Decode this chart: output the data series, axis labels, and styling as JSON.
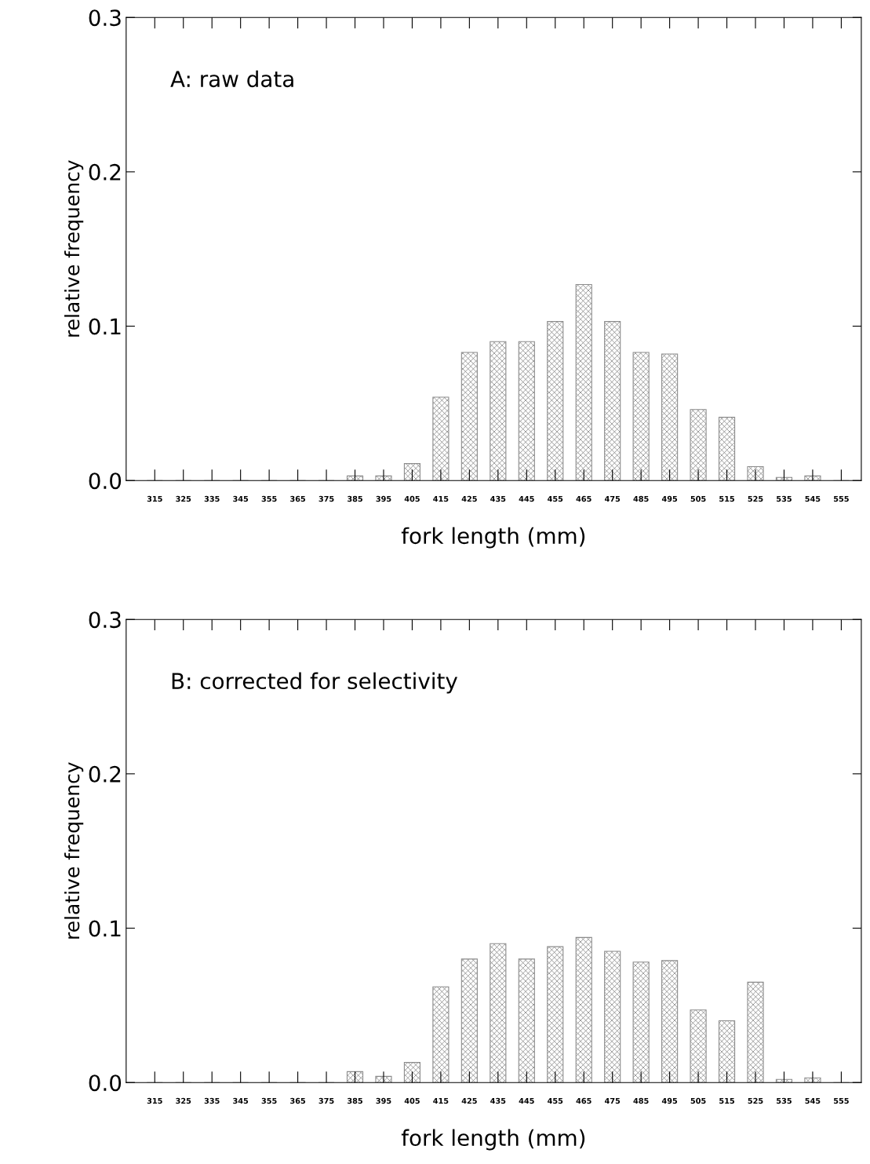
{
  "chart_data": [
    {
      "type": "bar",
      "annotations": [
        "A: raw data"
      ],
      "xlabel": "fork length (mm)",
      "ylabel": "relative frequency",
      "categories": [
        "315",
        "325",
        "335",
        "345",
        "355",
        "365",
        "375",
        "385",
        "395",
        "405",
        "415",
        "425",
        "435",
        "445",
        "455",
        "465",
        "475",
        "485",
        "495",
        "505",
        "515",
        "525",
        "535",
        "545",
        "555"
      ],
      "values": [
        0,
        0,
        0,
        0,
        0,
        0,
        0,
        0.003,
        0.003,
        0.011,
        0.054,
        0.083,
        0.09,
        0.09,
        0.103,
        0.127,
        0.103,
        0.083,
        0.082,
        0.046,
        0.041,
        0.009,
        0.002,
        0.003,
        0
      ],
      "color": "#8c8c8c",
      "ylim": [
        0,
        0.3
      ],
      "yticks": [
        {
          "value": 0,
          "label": "0.0"
        },
        0.1,
        0.2,
        0.3
      ],
      "grid": false
    },
    {
      "type": "bar",
      "annotations": [
        "B: corrected for selectivity"
      ],
      "xlabel": "fork length (mm)",
      "ylabel": "relative frequency",
      "categories": [
        "315",
        "325",
        "335",
        "345",
        "355",
        "365",
        "375",
        "385",
        "395",
        "405",
        "415",
        "425",
        "435",
        "445",
        "455",
        "465",
        "475",
        "485",
        "495",
        "505",
        "515",
        "525",
        "535",
        "545",
        "555"
      ],
      "values": [
        0,
        0,
        0,
        0,
        0,
        0,
        0,
        0.007,
        0.004,
        0.013,
        0.062,
        0.08,
        0.09,
        0.08,
        0.088,
        0.094,
        0.085,
        0.078,
        0.079,
        0.047,
        0.04,
        0.065,
        0.002,
        0.003,
        0
      ],
      "color": "#8c8c8c",
      "ylim": [
        0,
        0.3
      ],
      "yticks": [
        {
          "value": 0,
          "label": "0.0"
        },
        0.1,
        0.2,
        0.3
      ],
      "grid": false
    }
  ]
}
